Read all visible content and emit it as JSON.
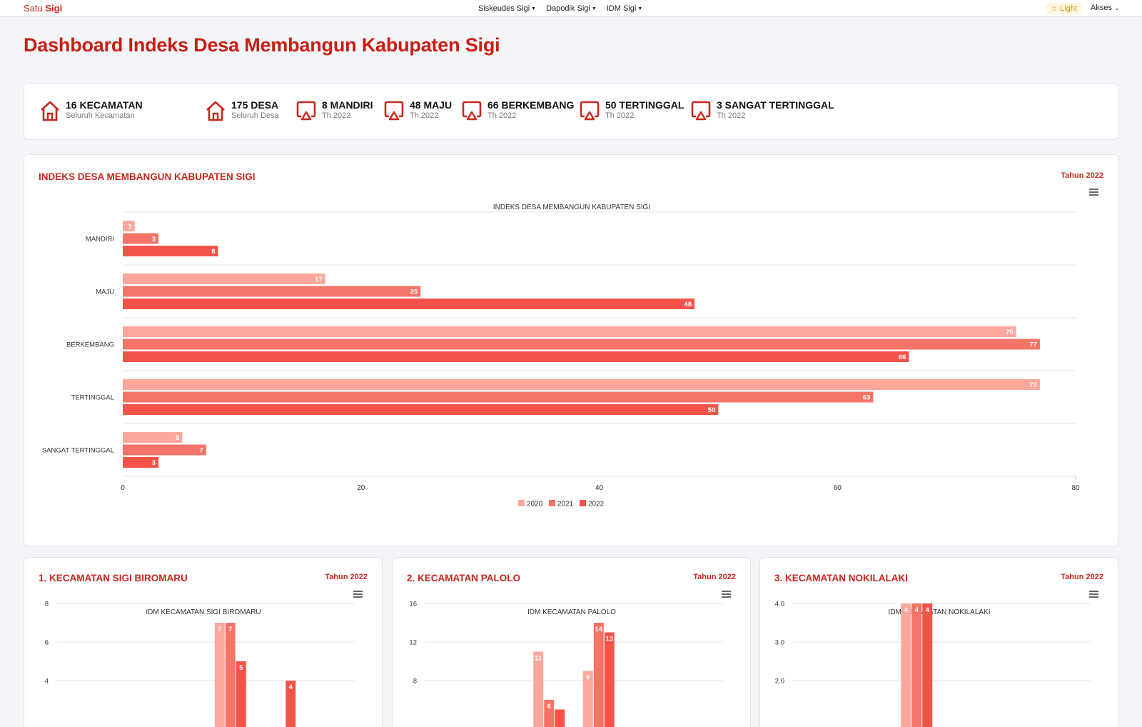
{
  "navbar": {
    "brand_prefix": "Satu",
    "brand_name": "Sigi",
    "links": [
      "Siskeudes Sigi",
      "Dapodik Sigi",
      "IDM Sigi"
    ],
    "theme_label": "Light",
    "akses_label": "Akses"
  },
  "page_title": "Dashboard Indeks Desa Membangun Kabupaten Sigi",
  "stats": [
    {
      "title": "16 KECAMATAN",
      "subtitle": "Seluruh Kecamatan",
      "icon": "home-icon"
    },
    {
      "title": "175 DESA",
      "subtitle": "Seluruh Desa",
      "icon": "home-icon"
    },
    {
      "title": "8 MANDIRI",
      "subtitle": "Th 2022",
      "icon": "airplay-icon"
    },
    {
      "title": "48 MAJU",
      "subtitle": "Th 2022",
      "icon": "airplay-icon"
    },
    {
      "title": "66 BERKEMBANG",
      "subtitle": "Th 2022",
      "icon": "airplay-icon"
    },
    {
      "title": "50 TERTINGGAL",
      "subtitle": "Th 2022",
      "icon": "airplay-icon"
    },
    {
      "title": "3 SANGAT TERTINGGAL",
      "subtitle": "Th 2022",
      "icon": "airplay-icon"
    }
  ],
  "colors": {
    "accent": "#c8281e",
    "series": [
      "#fca79b",
      "#f47467",
      "#f4534a"
    ]
  },
  "main_card": {
    "title": "INDEKS DESA MEMBANGUN KABUPATEN SIGI",
    "year": "Tahun 2022"
  },
  "sub_cards": [
    {
      "title": "1. KECAMATAN SIGI BIROMARU",
      "year": "Tahun 2022"
    },
    {
      "title": "2. KECAMATAN PALOLO",
      "year": "Tahun 2022"
    },
    {
      "title": "3. KECAMATAN NOKILALAKI",
      "year": "Tahun 2022"
    }
  ],
  "chart_data": [
    {
      "type": "bar",
      "orientation": "horizontal",
      "title": "INDEKS DESA MEMBANGUN KABUPATEN SIGI",
      "categories": [
        "MANDIRI",
        "MAJU",
        "BERKEMBANG",
        "TERTINGGAL",
        "SANGAT TERTINGGAL"
      ],
      "series": [
        {
          "name": "2020",
          "values": [
            1,
            17,
            75,
            77,
            5
          ]
        },
        {
          "name": "2021",
          "values": [
            3,
            25,
            77,
            63,
            7
          ]
        },
        {
          "name": "2022",
          "values": [
            8,
            48,
            66,
            50,
            3
          ]
        }
      ],
      "xlim": [
        0,
        80
      ],
      "ticks": [
        "0",
        "20",
        "40",
        "60",
        "80"
      ],
      "legend": "bottom-center",
      "grid": true
    },
    {
      "type": "bar",
      "title": "IDM KECAMATAN SIGI BIROMARU",
      "ylim": [
        2,
        8
      ],
      "ticks": [
        "4",
        "6",
        "8"
      ],
      "bars": [
        {
          "group": 3,
          "series": 0,
          "value": 7,
          "label": "7"
        },
        {
          "group": 3,
          "series": 1,
          "value": 7,
          "label": "7"
        },
        {
          "group": 3,
          "series": 2,
          "value": 5,
          "label": "5"
        },
        {
          "group": 4,
          "series": 2,
          "value": 4,
          "label": "4"
        }
      ]
    },
    {
      "type": "bar",
      "title": "IDM KECAMATAN PALOLO",
      "ylim": [
        4,
        16
      ],
      "ticks": [
        "8",
        "12",
        "16"
      ],
      "bars": [
        {
          "group": 2,
          "series": 0,
          "value": 11,
          "label": "11"
        },
        {
          "group": 2,
          "series": 1,
          "value": 6,
          "label": "6"
        },
        {
          "group": 2,
          "series": 2,
          "value": 5,
          "label": ""
        },
        {
          "group": 3,
          "series": 0,
          "value": 9,
          "label": "9"
        },
        {
          "group": 3,
          "series": 1,
          "value": 14,
          "label": "14"
        },
        {
          "group": 3,
          "series": 2,
          "value": 13,
          "label": "13"
        }
      ]
    },
    {
      "type": "bar",
      "title": "IDM KECAMATAN NOKILALAKI",
      "ylim": [
        1,
        4
      ],
      "ticks": [
        "2.0",
        "3.0",
        "4.0"
      ],
      "bars": [
        {
          "group": 2,
          "series": 0,
          "value": 4,
          "label": "4"
        },
        {
          "group": 2,
          "series": 1,
          "value": 4,
          "label": "4"
        },
        {
          "group": 2,
          "series": 2,
          "value": 4,
          "label": "4"
        }
      ]
    }
  ]
}
